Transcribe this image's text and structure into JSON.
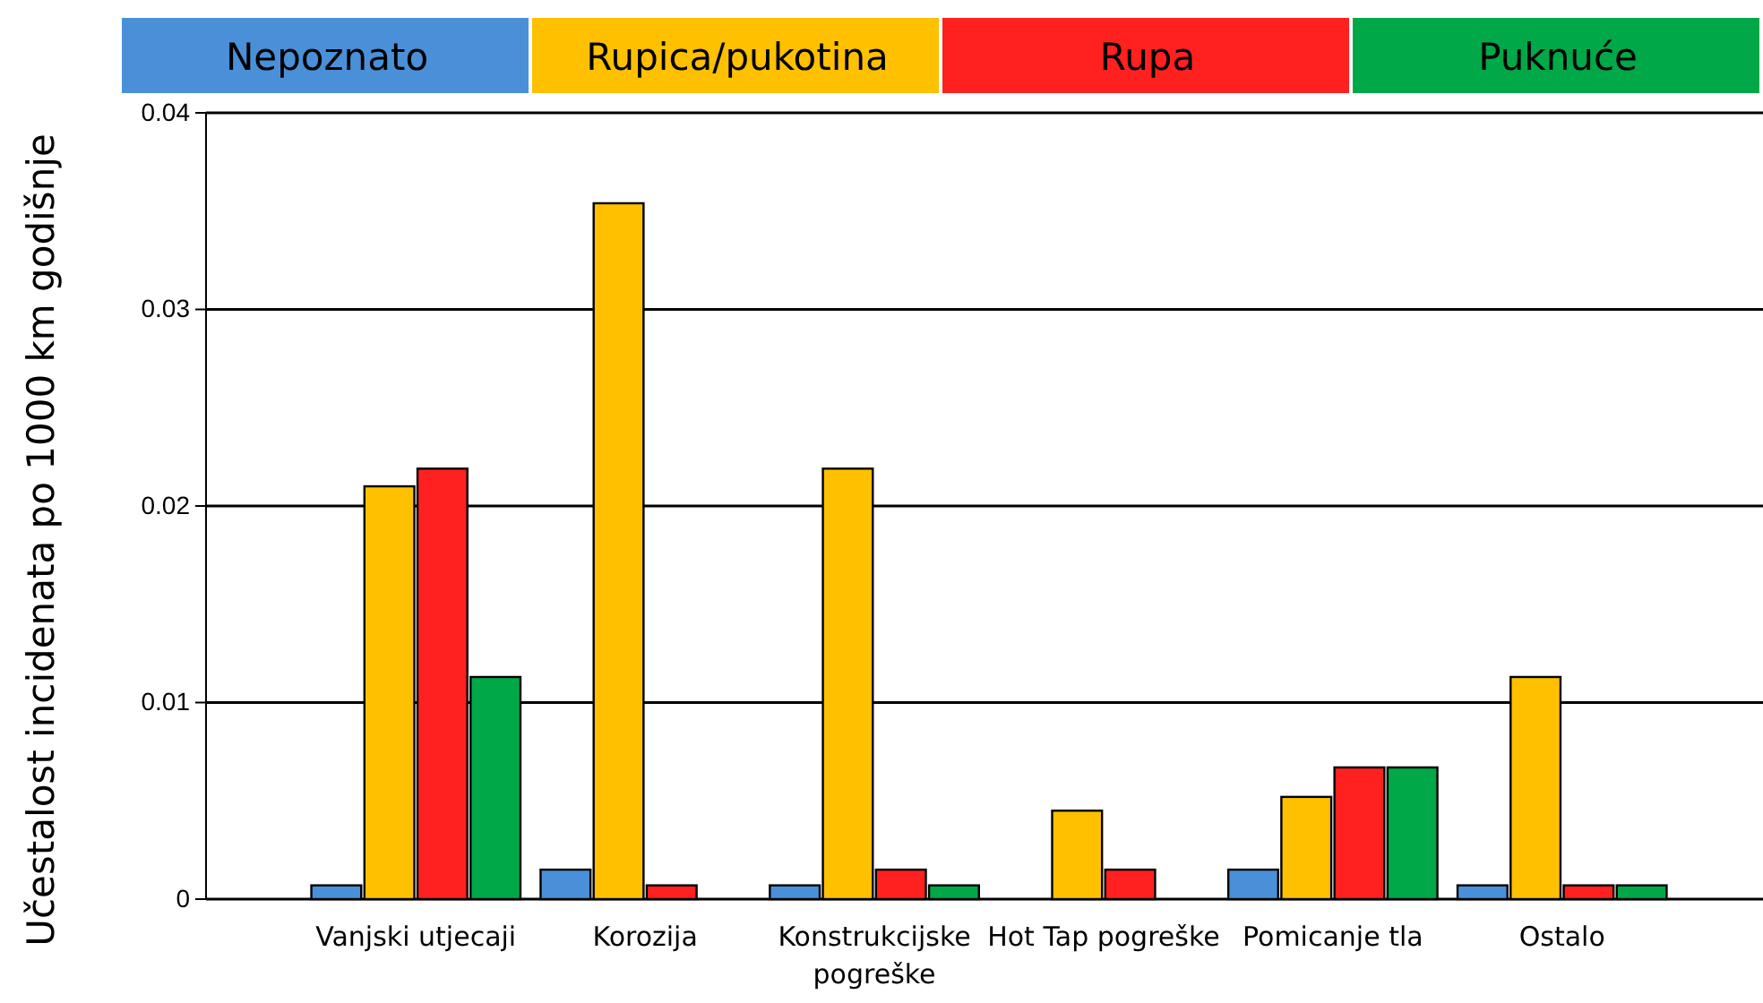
{
  "chart_data": {
    "type": "bar",
    "ylabel": "Učestalost incidenata po 1000 km godišnje",
    "categories": [
      "Vanjski utjecaji",
      "Korozija",
      "Konstrukcijske pogreške",
      "Hot Tap pogreške",
      "Pomicanje tla",
      "Ostalo"
    ],
    "series": [
      {
        "name": "Nepoznato",
        "color": "#4a90d9",
        "values": [
          0.0007,
          0.0015,
          0.0007,
          null,
          0.0015,
          0.0007
        ]
      },
      {
        "name": "Rupica/pukotina",
        "color": "#ffc000",
        "values": [
          0.021,
          0.0354,
          0.0219,
          0.0045,
          0.0052,
          0.0113
        ]
      },
      {
        "name": "Rupa",
        "color": "#ff2020",
        "values": [
          0.0219,
          0.0007,
          0.0015,
          0.0015,
          0.0067,
          0.0007
        ]
      },
      {
        "name": "Puknuće",
        "color": "#00a847",
        "values": [
          0.0113,
          null,
          0.0007,
          null,
          0.0067,
          0.0007
        ]
      }
    ],
    "ylim": [
      0,
      0.04
    ],
    "yticks": [
      0,
      0.01,
      0.02,
      0.03,
      0.04
    ],
    "grid": "y",
    "legend": "top"
  }
}
